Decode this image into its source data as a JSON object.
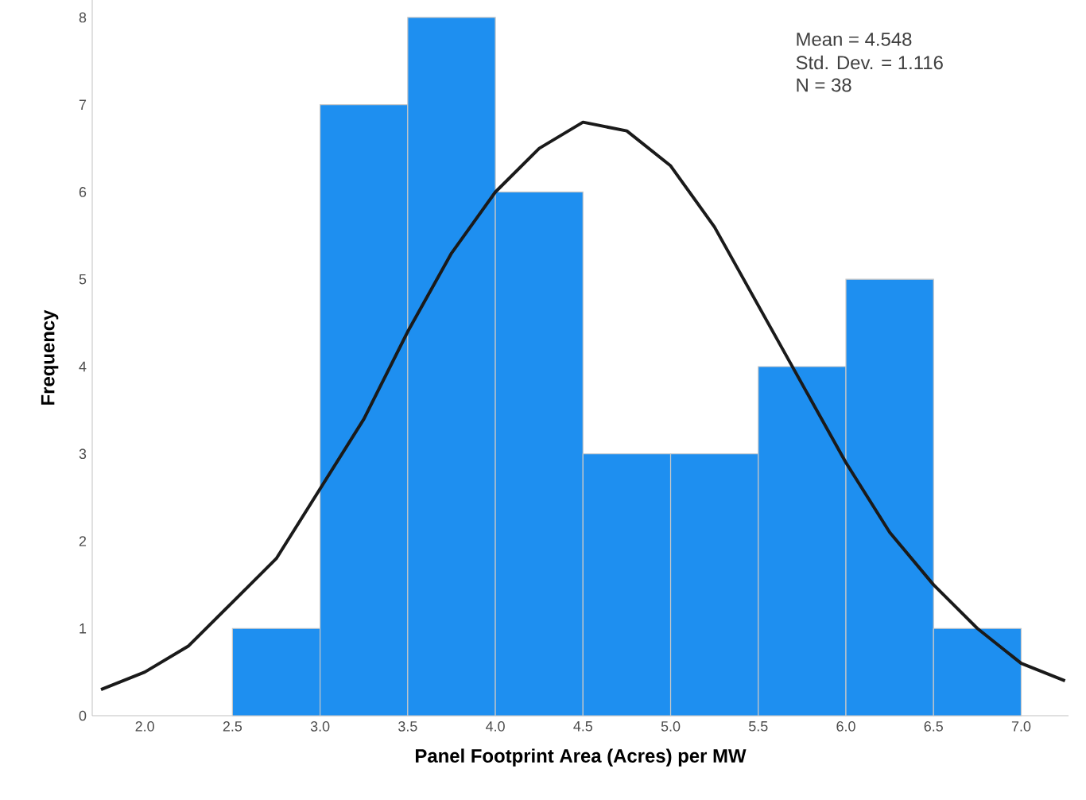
{
  "chart_data": {
    "type": "histogram",
    "xlabel": "Panel Footprint Area (Acres) per MW",
    "ylabel": "Frequency",
    "bins": [
      2.5,
      3.0,
      3.5,
      4.0,
      4.5,
      5.0,
      5.5,
      6.0,
      6.5,
      7.0
    ],
    "values": [
      1,
      7,
      8,
      6,
      3,
      3,
      4,
      5,
      1
    ],
    "color": "#1e8ff0",
    "series": [
      {
        "type": "line",
        "color": "#1a1a1a",
        "x": [
          1.75,
          2.0,
          2.25,
          2.5,
          2.75,
          3.0,
          3.25,
          3.5,
          3.75,
          4.0,
          4.25,
          4.5,
          4.75,
          5.0,
          5.25,
          5.5,
          5.75,
          6.0,
          6.25,
          6.5,
          6.75,
          7.0,
          7.25
        ],
        "values": [
          0.3,
          0.5,
          0.8,
          1.3,
          1.8,
          2.6,
          3.4,
          4.4,
          5.3,
          6.0,
          6.5,
          6.8,
          6.7,
          6.3,
          5.6,
          4.7,
          3.8,
          2.9,
          2.1,
          1.5,
          1.0,
          0.6,
          0.4
        ]
      }
    ],
    "xlim": [
      1.7,
      7.27
    ],
    "ylim": [
      0,
      8.2
    ],
    "xticks": [
      {
        "value": 2,
        "label": "2.0"
      },
      {
        "value": 2.5,
        "label": "2.5"
      },
      {
        "value": 3,
        "label": "3.0"
      },
      {
        "value": 3.5,
        "label": "3.5"
      },
      {
        "value": 4,
        "label": "4.0"
      },
      {
        "value": 4.5,
        "label": "4.5"
      },
      {
        "value": 5,
        "label": "5.0"
      },
      {
        "value": 5.5,
        "label": "5.5"
      },
      {
        "value": 6,
        "label": "6.0"
      },
      {
        "value": 6.5,
        "label": "6.5"
      },
      {
        "value": 7,
        "label": "7.0"
      }
    ],
    "yticks": [
      0,
      1,
      2,
      3,
      4,
      5,
      6,
      7,
      8
    ],
    "annotations": [
      "Mean = 4.548",
      "Std. Dev. = 1.116",
      "N = 38"
    ]
  }
}
